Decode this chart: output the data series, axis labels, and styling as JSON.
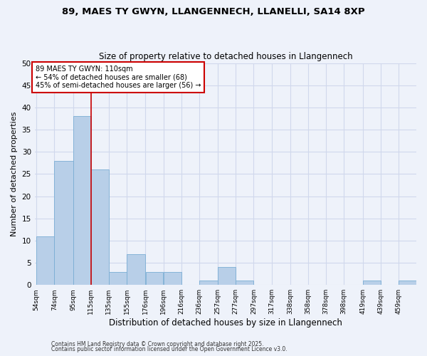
{
  "title1": "89, MAES TY GWYN, LLANGENNECH, LLANELLI, SA14 8XP",
  "title2": "Size of property relative to detached houses in Llangennech",
  "xlabel": "Distribution of detached houses by size in Llangennech",
  "ylabel": "Number of detached properties",
  "bin_labels": [
    "54sqm",
    "74sqm",
    "95sqm",
    "115sqm",
    "135sqm",
    "155sqm",
    "176sqm",
    "196sqm",
    "216sqm",
    "236sqm",
    "257sqm",
    "277sqm",
    "297sqm",
    "317sqm",
    "338sqm",
    "358sqm",
    "378sqm",
    "398sqm",
    "419sqm",
    "439sqm",
    "459sqm"
  ],
  "bin_edges": [
    54,
    74,
    95,
    115,
    135,
    155,
    176,
    196,
    216,
    236,
    257,
    277,
    297,
    317,
    338,
    358,
    378,
    398,
    419,
    439,
    459,
    479
  ],
  "counts": [
    11,
    28,
    38,
    26,
    3,
    7,
    3,
    3,
    0,
    1,
    4,
    1,
    0,
    0,
    0,
    0,
    0,
    0,
    1,
    0,
    1
  ],
  "bar_color": "#b8cfe8",
  "bar_edge_color": "#7aadd4",
  "vline_x": 115,
  "vline_color": "#cc0000",
  "annotation_text": "89 MAES TY GWYN: 110sqm\n← 54% of detached houses are smaller (68)\n45% of semi-detached houses are larger (56) →",
  "annotation_box_color": "#ffffff",
  "annotation_box_edge": "#cc0000",
  "ylim": [
    0,
    50
  ],
  "yticks": [
    0,
    5,
    10,
    15,
    20,
    25,
    30,
    35,
    40,
    45,
    50
  ],
  "footer1": "Contains HM Land Registry data © Crown copyright and database right 2025.",
  "footer2": "Contains public sector information licensed under the Open Government Licence v3.0.",
  "bg_color": "#eef2fa",
  "grid_color": "#d0d8ec"
}
